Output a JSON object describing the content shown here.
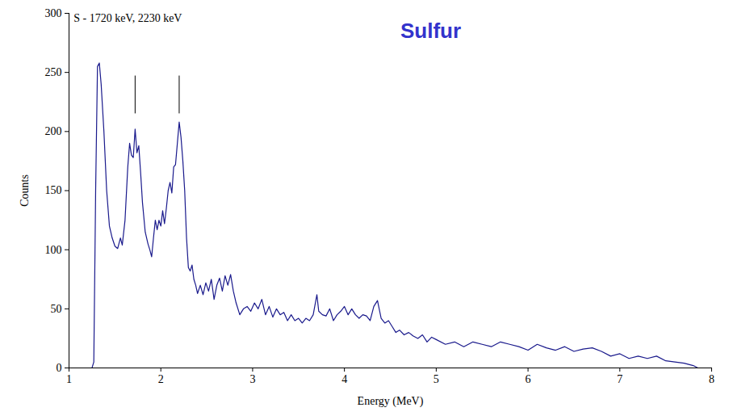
{
  "chart_data": {
    "type": "line",
    "title": "Sulfur",
    "x_label": "Energy (MeV)",
    "y_label": "Counts",
    "xlim": [
      1,
      8
    ],
    "ylim": [
      0,
      300
    ],
    "xticks": [
      1,
      2,
      3,
      4,
      5,
      6,
      7,
      8
    ],
    "yticks": [
      0,
      50,
      100,
      150,
      200,
      250,
      300
    ],
    "grid": false,
    "color": "#1a1a8c",
    "annotation": {
      "text": "S - 1720 keV, 2230 keV",
      "x": 1.05,
      "y": 296
    },
    "markers": {
      "x": [
        1.72,
        2.2
      ],
      "y": [
        215,
        247
      ]
    },
    "x": [
      1.0,
      1.25,
      1.27,
      1.29,
      1.31,
      1.33,
      1.35,
      1.38,
      1.41,
      1.44,
      1.47,
      1.5,
      1.53,
      1.56,
      1.58,
      1.61,
      1.64,
      1.66,
      1.68,
      1.7,
      1.72,
      1.74,
      1.76,
      1.78,
      1.8,
      1.83,
      1.86,
      1.88,
      1.9,
      1.92,
      1.94,
      1.96,
      1.98,
      2.0,
      2.02,
      2.04,
      2.06,
      2.08,
      2.1,
      2.12,
      2.14,
      2.16,
      2.18,
      2.2,
      2.22,
      2.24,
      2.26,
      2.28,
      2.3,
      2.32,
      2.34,
      2.36,
      2.38,
      2.4,
      2.43,
      2.46,
      2.49,
      2.52,
      2.55,
      2.58,
      2.61,
      2.64,
      2.67,
      2.7,
      2.73,
      2.76,
      2.79,
      2.82,
      2.86,
      2.9,
      2.94,
      2.98,
      3.02,
      3.06,
      3.1,
      3.14,
      3.18,
      3.22,
      3.26,
      3.3,
      3.34,
      3.38,
      3.42,
      3.46,
      3.5,
      3.54,
      3.58,
      3.62,
      3.66,
      3.7,
      3.72,
      3.76,
      3.8,
      3.84,
      3.88,
      3.92,
      3.96,
      4.0,
      4.04,
      4.08,
      4.12,
      4.16,
      4.2,
      4.24,
      4.28,
      4.32,
      4.36,
      4.4,
      4.44,
      4.48,
      4.52,
      4.56,
      4.6,
      4.65,
      4.7,
      4.75,
      4.8,
      4.85,
      4.9,
      4.95,
      5.0,
      5.1,
      5.2,
      5.3,
      5.4,
      5.5,
      5.6,
      5.7,
      5.8,
      5.9,
      6.0,
      6.1,
      6.2,
      6.3,
      6.4,
      6.5,
      6.6,
      6.7,
      6.8,
      6.9,
      7.0,
      7.1,
      7.2,
      7.3,
      7.4,
      7.5,
      7.6,
      7.7,
      7.8,
      7.85
    ],
    "values": [
      0,
      0,
      5,
      150,
      255,
      258,
      240,
      200,
      150,
      120,
      110,
      103,
      101,
      110,
      104,
      125,
      170,
      190,
      180,
      178,
      202,
      182,
      188,
      165,
      140,
      115,
      105,
      100,
      94,
      110,
      125,
      117,
      125,
      120,
      133,
      122,
      135,
      150,
      157,
      148,
      170,
      172,
      190,
      208,
      195,
      175,
      150,
      110,
      85,
      82,
      87,
      75,
      70,
      63,
      70,
      62,
      72,
      65,
      75,
      58,
      70,
      76,
      65,
      78,
      70,
      79,
      65,
      55,
      45,
      50,
      52,
      48,
      55,
      50,
      58,
      45,
      52,
      43,
      50,
      45,
      47,
      40,
      45,
      40,
      42,
      38,
      42,
      40,
      45,
      62,
      48,
      45,
      44,
      50,
      40,
      45,
      48,
      52,
      45,
      50,
      45,
      42,
      45,
      44,
      40,
      52,
      57,
      42,
      38,
      40,
      35,
      30,
      32,
      28,
      30,
      27,
      25,
      28,
      22,
      26,
      24,
      20,
      22,
      18,
      22,
      20,
      18,
      22,
      20,
      18,
      15,
      20,
      17,
      15,
      18,
      14,
      16,
      17,
      14,
      10,
      12,
      8,
      10,
      8,
      10,
      6,
      5,
      4,
      2,
      0
    ]
  }
}
